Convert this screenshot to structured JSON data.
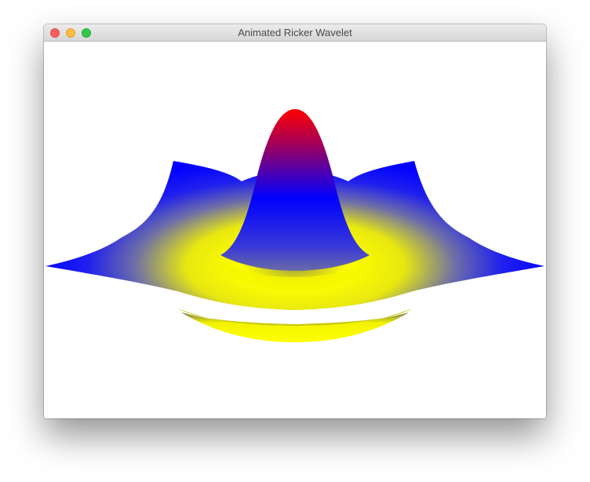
{
  "window": {
    "title": "Animated Ricker Wavelet"
  },
  "colors": {
    "peak": "#ff0000",
    "mid": "#0000ff",
    "low": "#ffff00",
    "background": "#ffffff"
  }
}
